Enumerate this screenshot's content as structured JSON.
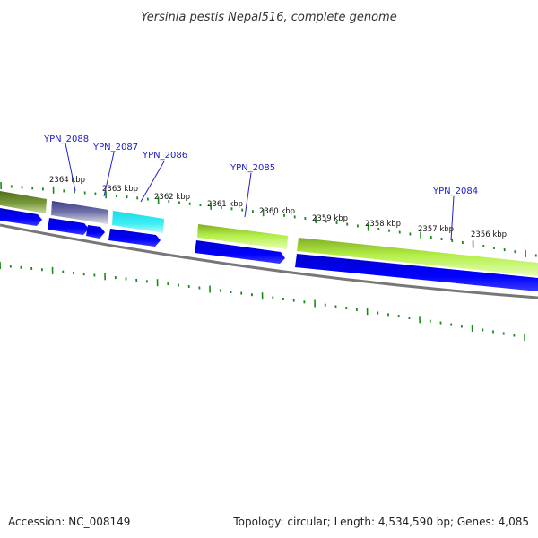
{
  "title": "Yersinia pestis Nepal516, complete genome",
  "accession": "Accession: NC_008149",
  "summary": "Topology: circular; Length: 4,534,590 bp; Genes: 4,085",
  "tick_labels": [
    "2364 kbp",
    "2363 kbp",
    "2362 kbp",
    "2361 kbp",
    "2360 kbp",
    "2359 kbp",
    "2358 kbp",
    "2357 kbp",
    "2356 kbp"
  ],
  "gene_labels": [
    "YPN_2088",
    "YPN_2087",
    "YPN_2086",
    "YPN_2085",
    "YPN_2084"
  ],
  "colors": {
    "cds_arrow": "#0000ee",
    "backbone": "#777777",
    "ticks": "#1a8a1a",
    "gene_label": "#1a1acc",
    "feature_olive": "#5e7f24",
    "feature_purple": "#4a4a94",
    "feature_cyan": "#22e6ee",
    "feature_lime": "#aaee44"
  }
}
